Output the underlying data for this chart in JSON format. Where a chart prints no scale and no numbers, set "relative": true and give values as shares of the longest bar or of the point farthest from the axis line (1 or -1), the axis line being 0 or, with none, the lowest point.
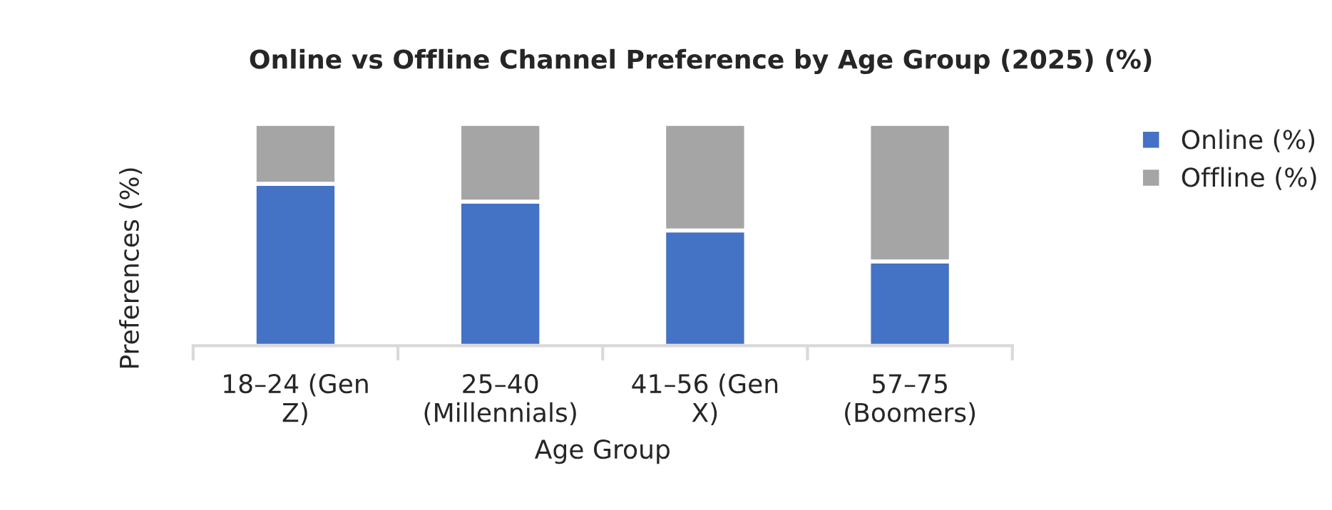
{
  "chart_data": {
    "type": "bar",
    "title": "Online vs Offline Channel Preference by Age Group (2025) (%)",
    "xlabel": "Age Group",
    "ylabel": "Preferences (%)",
    "categories": [
      "18–24 (Gen\nZ)",
      "25–40\n(Millennials)",
      "41–56 (Gen\nX)",
      "57–75\n(Boomers)"
    ],
    "series": [
      {
        "name": "Online (%)",
        "color": "#4472c4",
        "values": [
          0.73,
          0.65,
          0.52,
          0.38
        ]
      },
      {
        "name": "Offline (%)",
        "color": "#a5a5a5",
        "values": [
          0.27,
          0.35,
          0.48,
          0.62
        ]
      }
    ],
    "stacked": true,
    "relative": true,
    "legend": "top right"
  }
}
